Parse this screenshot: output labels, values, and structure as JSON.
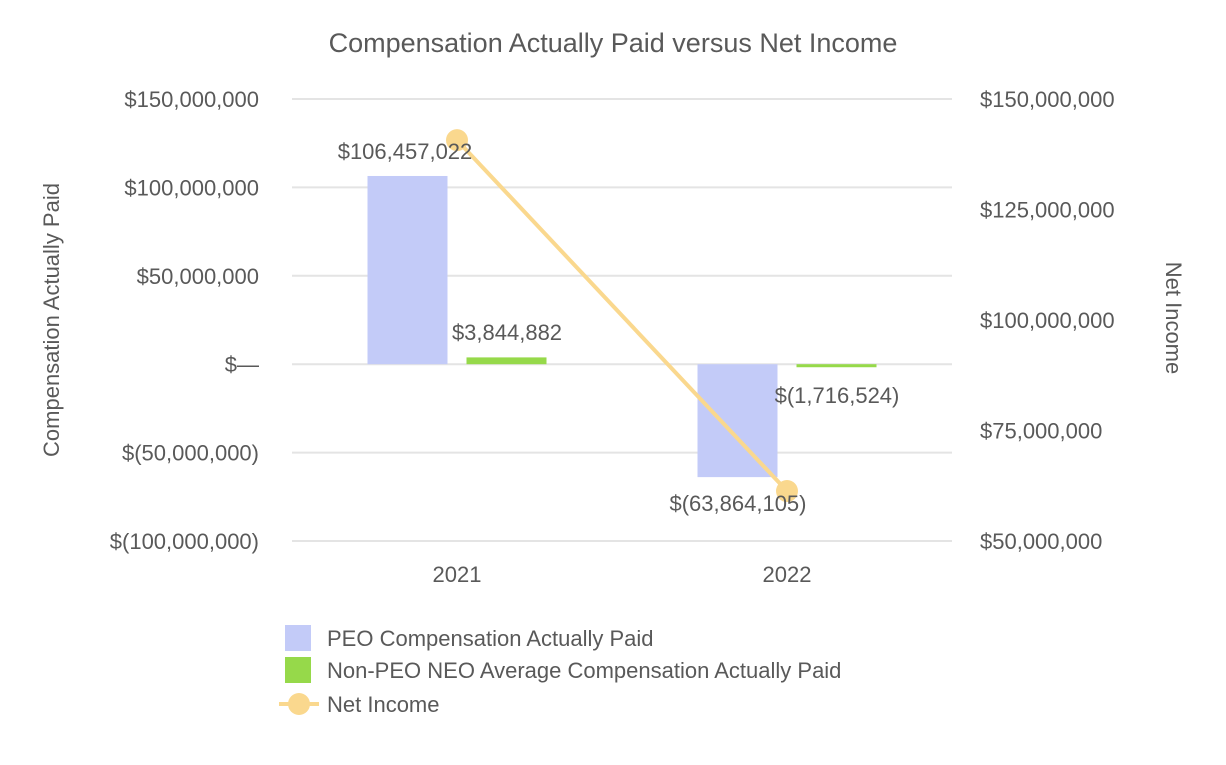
{
  "chart_data": {
    "type": "bar",
    "title": "Compensation Actually Paid versus Net Income",
    "categories": [
      "2021",
      "2022"
    ],
    "ylabel": "Compensation Actually Paid",
    "y2label": "Net Income",
    "ylim": [
      -100000000,
      150000000
    ],
    "y2lim": [
      50000000,
      150000000
    ],
    "yticks": [
      150000000,
      100000000,
      50000000,
      0,
      -50000000,
      -100000000
    ],
    "ytick_labels": [
      "$150,000,000",
      "$100,000,000",
      "$50,000,000",
      "$—",
      "$(50,000,000)",
      "$(100,000,000)"
    ],
    "y2ticks": [
      150000000,
      125000000,
      100000000,
      75000000,
      50000000
    ],
    "y2tick_labels": [
      "$150,000,000",
      "$125,000,000",
      "$100,000,000",
      "$75,000,000",
      "$50,000,000"
    ],
    "grid": true,
    "legend_position": "bottom-left",
    "series": [
      {
        "name": "PEO Compensation Actually Paid",
        "kind": "bar",
        "axis": "left",
        "color": "#c3cbf8",
        "values": [
          106457022,
          -63864105
        ],
        "labels": [
          "$106,457,022",
          "$(63,864,105)"
        ]
      },
      {
        "name": "Non-PEO NEO Average Compensation Actually Paid",
        "kind": "bar",
        "axis": "left",
        "color": "#96d94a",
        "values": [
          3844882,
          -1716524
        ],
        "labels": [
          "$3,844,882",
          "$(1,716,524)"
        ]
      },
      {
        "name": "Net Income",
        "kind": "line",
        "axis": "right",
        "color": "#fad88e",
        "values": [
          140700000,
          61300000
        ]
      }
    ]
  }
}
